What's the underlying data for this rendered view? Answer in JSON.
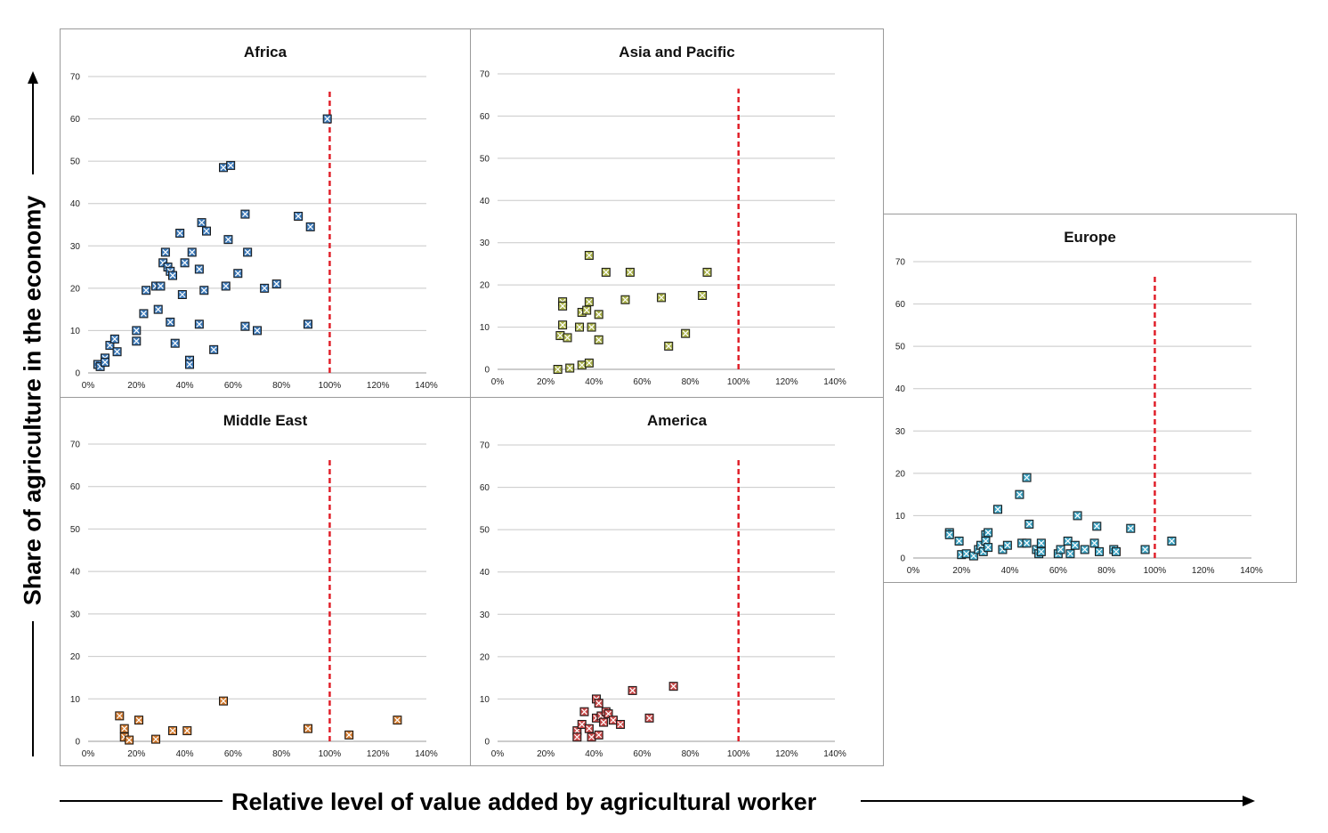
{
  "axis_titles": {
    "y": "Share of agriculture in the economy",
    "x": "Relative level of value added by agricultural worker"
  },
  "colors": {
    "reference_line": "#e0202a",
    "grid": "#c8c8c8",
    "africa_marker": "#3a78b8",
    "asia_marker": "#a8b048",
    "europe_marker": "#3aa0c0",
    "middle_east_marker": "#d0782c",
    "america_marker": "#c84848"
  },
  "chart_data": [
    {
      "type": "scatter",
      "title": "Africa",
      "xlim": [
        0,
        1.4
      ],
      "ylim": [
        0,
        70
      ],
      "x_ticks": [
        "0%",
        "20%",
        "40%",
        "60%",
        "80%",
        "100%",
        "120%",
        "140%"
      ],
      "y_ticks": [
        "0",
        "10",
        "20",
        "30",
        "40",
        "50",
        "60",
        "70"
      ],
      "reference_x": 1.0,
      "color": "#3a78b8",
      "points": [
        [
          0.04,
          2
        ],
        [
          0.05,
          1.5
        ],
        [
          0.07,
          3.5
        ],
        [
          0.07,
          2.5
        ],
        [
          0.09,
          6.5
        ],
        [
          0.11,
          8
        ],
        [
          0.12,
          5
        ],
        [
          0.2,
          10
        ],
        [
          0.2,
          7.5
        ],
        [
          0.23,
          14
        ],
        [
          0.24,
          19.5
        ],
        [
          0.28,
          20.5
        ],
        [
          0.29,
          15
        ],
        [
          0.3,
          20.5
        ],
        [
          0.31,
          26
        ],
        [
          0.32,
          28.5
        ],
        [
          0.33,
          25
        ],
        [
          0.34,
          24
        ],
        [
          0.34,
          12
        ],
        [
          0.35,
          23
        ],
        [
          0.36,
          7
        ],
        [
          0.38,
          33
        ],
        [
          0.39,
          18.5
        ],
        [
          0.4,
          26
        ],
        [
          0.42,
          3
        ],
        [
          0.42,
          2
        ],
        [
          0.43,
          28.5
        ],
        [
          0.46,
          24.5
        ],
        [
          0.46,
          11.5
        ],
        [
          0.47,
          35.5
        ],
        [
          0.48,
          19.5
        ],
        [
          0.49,
          33.5
        ],
        [
          0.52,
          5.5
        ],
        [
          0.56,
          48.5
        ],
        [
          0.57,
          20.5
        ],
        [
          0.58,
          31.5
        ],
        [
          0.59,
          49
        ],
        [
          0.62,
          23.5
        ],
        [
          0.65,
          37.5
        ],
        [
          0.65,
          11
        ],
        [
          0.66,
          28.5
        ],
        [
          0.7,
          10
        ],
        [
          0.73,
          20
        ],
        [
          0.78,
          21
        ],
        [
          0.87,
          37
        ],
        [
          0.91,
          11.5
        ],
        [
          0.92,
          34.5
        ],
        [
          0.99,
          60
        ]
      ]
    },
    {
      "type": "scatter",
      "title": "Asia and Pacific",
      "xlim": [
        0,
        1.4
      ],
      "ylim": [
        0,
        70
      ],
      "x_ticks": [
        "0%",
        "20%",
        "40%",
        "60%",
        "80%",
        "100%",
        "120%",
        "140%"
      ],
      "y_ticks": [
        "0",
        "10",
        "20",
        "30",
        "40",
        "50",
        "60",
        "70"
      ],
      "reference_x": 1.0,
      "color": "#a8b048",
      "points": [
        [
          0.25,
          0
        ],
        [
          0.26,
          8
        ],
        [
          0.27,
          16
        ],
        [
          0.27,
          15
        ],
        [
          0.27,
          10.5
        ],
        [
          0.29,
          7.5
        ],
        [
          0.3,
          0.3
        ],
        [
          0.34,
          10
        ],
        [
          0.35,
          13.5
        ],
        [
          0.35,
          1
        ],
        [
          0.37,
          14
        ],
        [
          0.38,
          1.5
        ],
        [
          0.38,
          16
        ],
        [
          0.38,
          27
        ],
        [
          0.39,
          10
        ],
        [
          0.42,
          13
        ],
        [
          0.42,
          7
        ],
        [
          0.45,
          23
        ],
        [
          0.53,
          16.5
        ],
        [
          0.55,
          23
        ],
        [
          0.68,
          17
        ],
        [
          0.71,
          5.5
        ],
        [
          0.78,
          8.5
        ],
        [
          0.85,
          17.5
        ],
        [
          0.87,
          23
        ]
      ]
    },
    {
      "type": "scatter",
      "title": "Europe",
      "xlim": [
        0,
        1.4
      ],
      "ylim": [
        0,
        70
      ],
      "x_ticks": [
        "0%",
        "20%",
        "40%",
        "60%",
        "80%",
        "100%",
        "120%",
        "140%"
      ],
      "y_ticks": [
        "0",
        "10",
        "20",
        "30",
        "40",
        "50",
        "60",
        "70"
      ],
      "reference_x": 1.0,
      "color": "#3aa0c0",
      "points": [
        [
          0.15,
          6
        ],
        [
          0.15,
          5.5
        ],
        [
          0.19,
          4
        ],
        [
          0.2,
          0.8
        ],
        [
          0.22,
          1
        ],
        [
          0.25,
          0.5
        ],
        [
          0.27,
          2
        ],
        [
          0.28,
          3
        ],
        [
          0.29,
          1.5
        ],
        [
          0.3,
          5.5
        ],
        [
          0.3,
          4
        ],
        [
          0.31,
          2.5
        ],
        [
          0.31,
          6
        ],
        [
          0.35,
          11.5
        ],
        [
          0.37,
          2
        ],
        [
          0.39,
          3
        ],
        [
          0.44,
          15
        ],
        [
          0.45,
          3.5
        ],
        [
          0.47,
          3.5
        ],
        [
          0.47,
          19
        ],
        [
          0.48,
          8
        ],
        [
          0.51,
          2
        ],
        [
          0.52,
          1
        ],
        [
          0.53,
          3.5
        ],
        [
          0.53,
          1.5
        ],
        [
          0.6,
          1
        ],
        [
          0.61,
          2
        ],
        [
          0.64,
          4
        ],
        [
          0.65,
          1
        ],
        [
          0.67,
          3
        ],
        [
          0.68,
          10
        ],
        [
          0.71,
          2
        ],
        [
          0.75,
          3.5
        ],
        [
          0.76,
          7.5
        ],
        [
          0.77,
          1.5
        ],
        [
          0.83,
          2
        ],
        [
          0.84,
          1.5
        ],
        [
          0.9,
          7
        ],
        [
          0.96,
          2
        ],
        [
          1.07,
          4
        ]
      ]
    },
    {
      "type": "scatter",
      "title": "Middle East",
      "xlim": [
        0,
        1.4
      ],
      "ylim": [
        0,
        70
      ],
      "x_ticks": [
        "0%",
        "20%",
        "40%",
        "60%",
        "80%",
        "100%",
        "120%",
        "140%"
      ],
      "y_ticks": [
        "0",
        "10",
        "20",
        "30",
        "40",
        "50",
        "60",
        "70"
      ],
      "reference_x": 1.0,
      "color": "#d0782c",
      "points": [
        [
          0.13,
          6
        ],
        [
          0.15,
          3
        ],
        [
          0.15,
          1
        ],
        [
          0.17,
          0.3
        ],
        [
          0.21,
          5
        ],
        [
          0.28,
          0.5
        ],
        [
          0.35,
          2.5
        ],
        [
          0.41,
          2.5
        ],
        [
          0.56,
          9.5
        ],
        [
          0.91,
          3
        ],
        [
          1.08,
          1.5
        ],
        [
          1.28,
          5
        ]
      ]
    },
    {
      "type": "scatter",
      "title": "America",
      "xlim": [
        0,
        1.4
      ],
      "ylim": [
        0,
        70
      ],
      "x_ticks": [
        "0%",
        "20%",
        "40%",
        "60%",
        "80%",
        "100%",
        "120%",
        "140%"
      ],
      "y_ticks": [
        "0",
        "10",
        "20",
        "30",
        "40",
        "50",
        "60",
        "70"
      ],
      "reference_x": 1.0,
      "color": "#c84848",
      "points": [
        [
          0.33,
          2.5
        ],
        [
          0.33,
          1
        ],
        [
          0.35,
          4
        ],
        [
          0.36,
          7
        ],
        [
          0.38,
          3
        ],
        [
          0.39,
          1
        ],
        [
          0.41,
          10
        ],
        [
          0.41,
          5.5
        ],
        [
          0.42,
          9
        ],
        [
          0.42,
          1.5
        ],
        [
          0.43,
          6
        ],
        [
          0.44,
          4.5
        ],
        [
          0.45,
          7
        ],
        [
          0.46,
          6.5
        ],
        [
          0.48,
          5
        ],
        [
          0.51,
          4
        ],
        [
          0.56,
          12
        ],
        [
          0.63,
          5.5
        ],
        [
          0.73,
          13
        ]
      ]
    }
  ]
}
